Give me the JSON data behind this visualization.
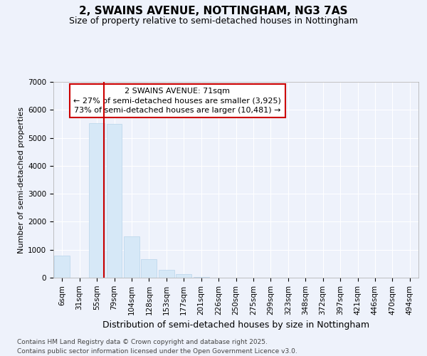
{
  "title1": "2, SWAINS AVENUE, NOTTINGHAM, NG3 7AS",
  "title2": "Size of property relative to semi-detached houses in Nottingham",
  "xlabel": "Distribution of semi-detached houses by size in Nottingham",
  "ylabel": "Number of semi-detached properties",
  "categories": [
    "6sqm",
    "31sqm",
    "55sqm",
    "79sqm",
    "104sqm",
    "128sqm",
    "153sqm",
    "177sqm",
    "201sqm",
    "226sqm",
    "250sqm",
    "275sqm",
    "299sqm",
    "323sqm",
    "348sqm",
    "372sqm",
    "397sqm",
    "421sqm",
    "446sqm",
    "470sqm",
    "494sqm"
  ],
  "values": [
    800,
    0,
    5520,
    5500,
    1480,
    650,
    280,
    120,
    30,
    0,
    0,
    0,
    0,
    0,
    0,
    0,
    0,
    0,
    0,
    0,
    0
  ],
  "bar_color": "#d6e8f7",
  "bar_edge_color": "#b8d4ea",
  "vline_color": "#cc0000",
  "vline_pos": 2.42,
  "annotation_text": "2 SWAINS AVENUE: 71sqm\n← 27% of semi-detached houses are smaller (3,925)\n73% of semi-detached houses are larger (10,481) →",
  "annotation_box_color": "#cc0000",
  "ylim": [
    0,
    7000
  ],
  "yticks": [
    0,
    1000,
    2000,
    3000,
    4000,
    5000,
    6000,
    7000
  ],
  "footer1": "Contains HM Land Registry data © Crown copyright and database right 2025.",
  "footer2": "Contains public sector information licensed under the Open Government Licence v3.0.",
  "background_color": "#eef2fb",
  "plot_bg_color": "#eef2fb",
  "grid_color": "#ffffff",
  "title1_fontsize": 11,
  "title2_fontsize": 9,
  "ylabel_fontsize": 8,
  "xlabel_fontsize": 9,
  "tick_fontsize": 7.5,
  "annot_fontsize": 8,
  "footer_fontsize": 6.5
}
